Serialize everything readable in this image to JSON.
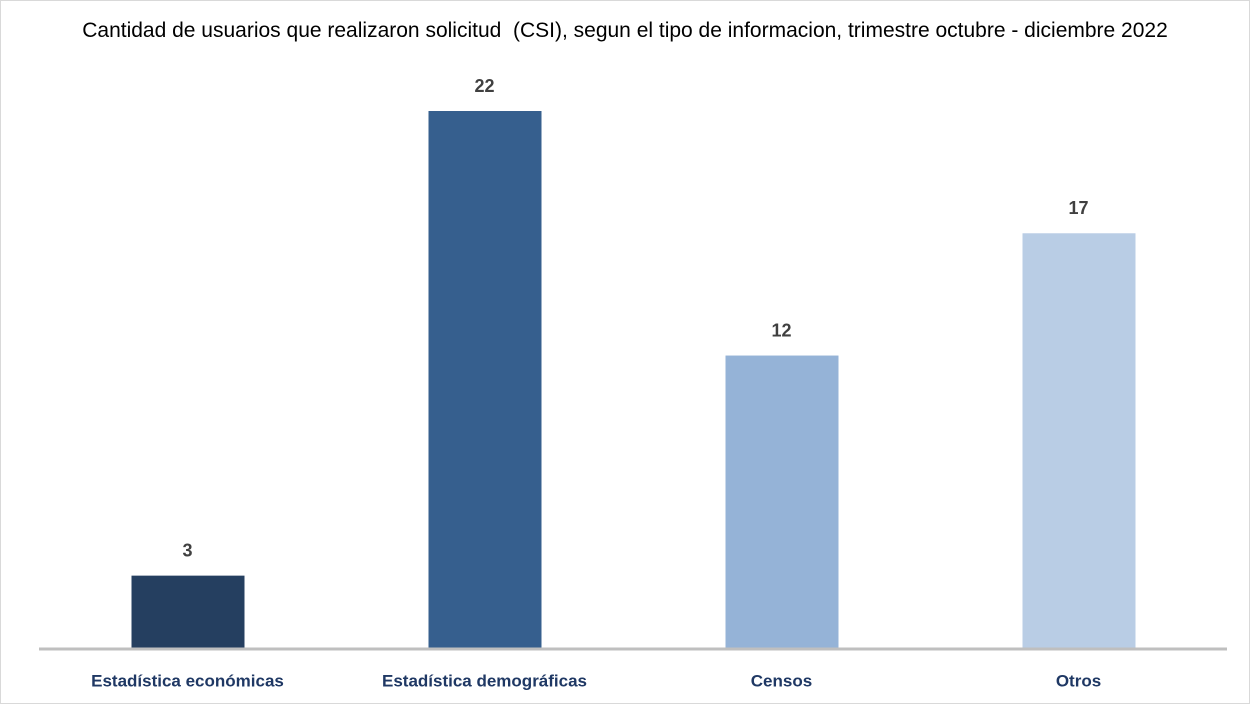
{
  "chart_data": {
    "type": "bar",
    "title": "Cantidad de usuarios que realizaron solicitud  (CSI), segun el tipo de informacion, trimestre octubre - diciembre 2022",
    "categories": [
      "Estadística económicas",
      "Estadística demográficas",
      "Censos",
      "Otros"
    ],
    "values": [
      3,
      22,
      12,
      17
    ],
    "colors": [
      "#253f60",
      "#365f8e",
      "#95b3d7",
      "#b9cde5"
    ]
  }
}
